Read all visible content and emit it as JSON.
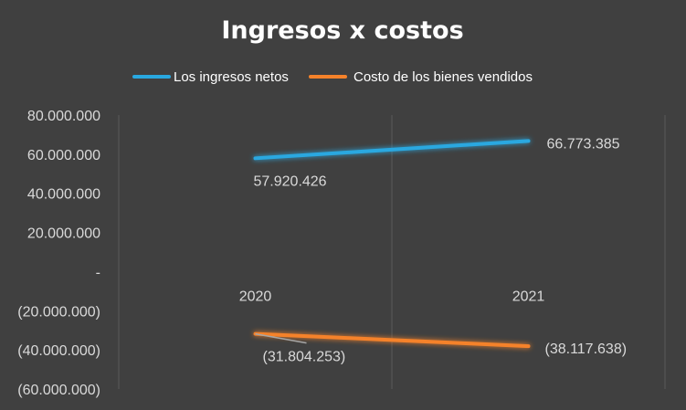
{
  "chart_data": {
    "type": "line",
    "title": "Ingresos x costos",
    "categories": [
      "2020",
      "2021"
    ],
    "series": [
      {
        "name": "Los ingresos netos",
        "color": "#29a8e0",
        "values": [
          57920426,
          66773385
        ],
        "labels": [
          "57.920.426",
          "66.773.385"
        ]
      },
      {
        "name": "Costo de los bienes vendidos",
        "color": "#f5822a",
        "values": [
          -31804253,
          -38117638
        ],
        "labels": [
          "(31.804.253)",
          "(38.117.638)"
        ]
      }
    ],
    "yticks": [
      80000000,
      60000000,
      40000000,
      20000000,
      0,
      -20000000,
      -40000000,
      -60000000
    ],
    "ytick_labels": [
      "80.000.000",
      "60.000.000",
      "40.000.000",
      "20.000.000",
      "-",
      "(20.000.000)",
      "(40.000.000)",
      "(60.000.000)"
    ],
    "ylim": [
      -60000000,
      80000000
    ],
    "grid": "vertical",
    "legend_position": "top"
  }
}
